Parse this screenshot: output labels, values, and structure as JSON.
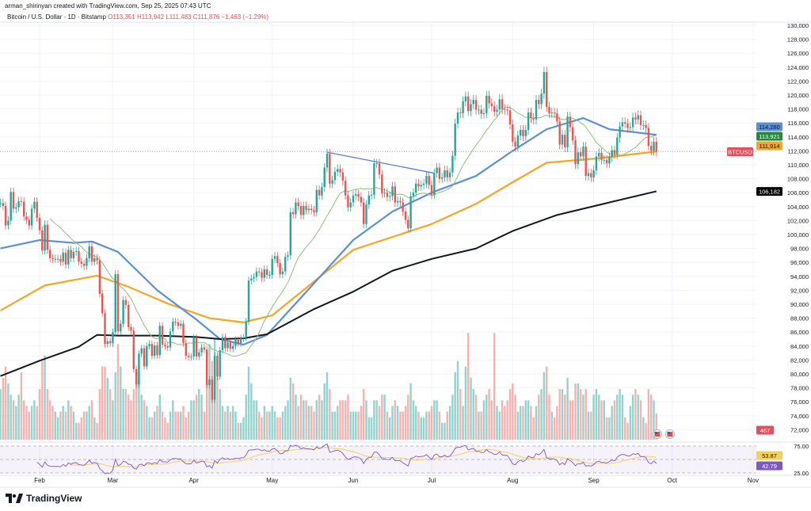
{
  "header": {
    "credit": "arman_shirinyan created with TradingView.com, Sep 25, 2025 07:43 UTC",
    "symbol": "Bitcoin / U.S. Dollar · 1D · Bitstamp",
    "open": "O113,351",
    "high": "H113,942",
    "low": "L111,483",
    "close": "C111,876",
    "change": "−1,463 (−1.29%)"
  },
  "logo": {
    "text": "TradingView"
  },
  "chart_data": {
    "type": "candlestick",
    "symbol": "BTCUSD",
    "interval": "1D",
    "ylim": [
      71000,
      131000
    ],
    "y_tick_labels": [
      "130,000",
      "128,000",
      "126,000",
      "124,000",
      "122,000",
      "120,000",
      "118,000",
      "116,000",
      "114,000",
      "112,000",
      "110,000",
      "108,000",
      "106,000",
      "104,000",
      "102,000",
      "100,000",
      "98,000",
      "96,000",
      "94,000",
      "92,000",
      "90,000",
      "88,000",
      "86,000",
      "84,000",
      "82,000",
      "80,000",
      "78,000",
      "76,000",
      "74,000",
      "72,000"
    ],
    "x_tick_labels": [
      {
        "label": "Feb",
        "date": "2025-02-01"
      },
      {
        "label": "Mar",
        "date": "2025-03-01"
      },
      {
        "label": "Apr",
        "date": "2025-04-01"
      },
      {
        "label": "May",
        "date": "2025-05-01"
      },
      {
        "label": "Jun",
        "date": "2025-06-01"
      },
      {
        "label": "Jul",
        "date": "2025-07-01"
      },
      {
        "label": "Aug",
        "date": "2025-08-01"
      },
      {
        "label": "Sep",
        "date": "2025-09-01"
      },
      {
        "label": "Oct",
        "date": "2025-10-01"
      },
      {
        "label": "Nov",
        "date": "2025-11-01"
      }
    ],
    "grid": true,
    "daily_close_thousands": [
      {
        "month": "2025-01",
        "from_day": 17,
        "close": [
          104.5,
          104.1,
          101.3,
          102.0,
          106.1,
          103.7,
          103.9,
          104.8,
          104.7,
          102.6,
          102.1,
          101.3,
          103.7,
          104.7,
          102.4
        ]
      },
      {
        "month": "2025-02",
        "from_day": 1,
        "close": [
          100.6,
          97.7,
          101.4,
          97.8,
          96.6,
          96.5,
          96.5,
          96.5,
          96.1,
          97.4,
          95.7,
          97.8,
          96.6,
          97.5,
          97.6,
          96.1,
          95.8,
          95.5,
          96.6,
          98.3,
          96.1,
          96.6,
          96.3,
          91.5,
          88.7,
          84.3,
          84.7,
          84.4
        ]
      },
      {
        "month": "2025-03",
        "from_day": 1,
        "close": [
          86.0,
          94.3,
          86.1,
          87.2,
          90.6,
          89.9,
          86.7,
          86.2,
          80.7,
          78.5,
          82.9,
          83.7,
          81.1,
          84.0,
          84.3,
          82.6,
          84.1,
          82.7,
          86.9,
          84.2,
          84.0,
          83.8,
          86.1,
          87.5,
          87.4,
          86.9,
          87.2,
          84.4,
          82.6,
          82.4,
          82.5
        ]
      },
      {
        "month": "2025-04",
        "from_day": 1,
        "close": [
          85.2,
          82.5,
          83.1,
          83.8,
          83.5,
          78.4,
          79.2,
          76.3,
          82.6,
          79.6,
          83.4,
          85.3,
          83.7,
          84.5,
          83.6,
          84.0,
          84.9,
          84.4,
          85.1,
          85.2,
          87.5,
          93.4,
          93.7,
          93.9,
          94.7,
          94.6,
          93.8,
          95.0,
          94.2,
          94.2
        ]
      },
      {
        "month": "2025-05",
        "from_day": 1,
        "close": [
          96.5,
          96.9,
          95.9,
          94.3,
          94.7,
          96.8,
          97.0,
          103.2,
          102.9,
          104.6,
          104.1,
          102.8,
          104.1,
          103.5,
          103.7,
          103.5,
          103.2,
          106.4,
          105.6,
          106.8,
          109.6,
          111.6,
          107.3,
          107.8,
          109.0,
          109.4,
          108.9,
          107.7,
          105.6,
          103.9,
          104.6
        ]
      },
      {
        "month": "2025-06",
        "from_day": 1,
        "close": [
          105.6,
          105.8,
          105.4,
          104.6,
          101.5,
          104.3,
          105.6,
          105.7,
          110.2,
          110.2,
          108.6,
          105.9,
          106.0,
          105.4,
          105.5,
          106.9,
          104.6,
          104.8,
          104.6,
          103.3,
          102.1,
          100.9,
          105.5,
          106.0,
          107.3,
          106.9,
          107.1,
          107.3,
          108.4,
          107.1
        ]
      },
      {
        "month": "2025-07",
        "from_day": 1,
        "close": [
          105.7,
          108.8,
          109.6,
          108.0,
          108.2,
          109.2,
          108.2,
          108.9,
          111.3,
          115.9,
          117.5,
          117.4,
          119.1,
          119.8,
          117.7,
          118.7,
          119.3,
          117.9,
          117.9,
          117.3,
          117.4,
          119.9,
          118.8,
          118.4,
          117.6,
          117.9,
          119.4,
          118.0,
          117.9,
          117.8,
          115.8
        ]
      },
      {
        "month": "2025-08",
        "from_day": 1,
        "close": [
          113.3,
          112.6,
          114.2,
          115.0,
          114.1,
          115.0,
          117.5,
          116.7,
          116.5,
          119.3,
          118.7,
          120.2,
          123.3,
          118.3,
          117.4,
          117.5,
          117.4,
          116.2,
          112.9,
          114.3,
          112.5,
          116.9,
          115.4,
          113.5,
          110.1,
          111.8,
          111.2,
          112.6,
          108.4,
          108.8,
          108.2
        ]
      },
      {
        "month": "2025-09",
        "from_day": 1,
        "close": [
          109.2,
          111.2,
          111.7,
          110.7,
          110.7,
          110.2,
          111.1,
          112.1,
          111.5,
          113.9,
          115.5,
          116.1,
          115.9,
          115.3,
          115.4,
          116.8,
          116.5,
          117.1,
          115.7,
          115.7,
          115.3,
          112.7,
          112.0,
          113.3,
          111.876
        ]
      }
    ],
    "daily_volume": [
      {
        "month": "2025-01",
        "from_day": 17,
        "values": [
          900,
          1100,
          1300,
          1000,
          800,
          700,
          600,
          800,
          1200,
          700,
          600,
          500,
          600,
          700,
          600
        ]
      },
      {
        "month": "2025-02",
        "from_day": 1,
        "values": [
          900,
          1400,
          1500,
          900,
          700,
          600,
          500,
          400,
          500,
          600,
          500,
          700,
          600,
          500,
          300,
          300,
          400,
          500,
          500,
          600,
          700,
          400,
          300,
          900,
          1300,
          1300,
          1100,
          900
        ]
      },
      {
        "month": "2025-03",
        "from_day": 1,
        "values": [
          700,
          1200,
          1700,
          1300,
          900,
          900,
          800,
          700,
          900,
          1200,
          1100,
          800,
          700,
          600,
          400,
          400,
          500,
          600,
          800,
          500,
          400,
          300,
          500,
          700,
          500,
          500,
          500,
          600,
          400,
          500,
          700
        ]
      },
      {
        "month": "2025-04",
        "from_day": 1,
        "values": [
          700,
          800,
          900,
          800,
          500,
          1000,
          1700,
          1400,
          1800,
          1100,
          900,
          600,
          500,
          600,
          500,
          600,
          500,
          300,
          300,
          400,
          800,
          1300,
          1000,
          700,
          700,
          500,
          400,
          600,
          500,
          500
        ]
      },
      {
        "month": "2025-05",
        "from_day": 1,
        "values": [
          600,
          500,
          400,
          400,
          500,
          600,
          700,
          1100,
          1000,
          800,
          600,
          800,
          700,
          700,
          600,
          600,
          500,
          700,
          800,
          700,
          1000,
          1200,
          900,
          500,
          500,
          600,
          700,
          700,
          700,
          800,
          500
        ]
      },
      {
        "month": "2025-06",
        "from_day": 1,
        "values": [
          500,
          500,
          500,
          600,
          900,
          700,
          400,
          400,
          700,
          700,
          600,
          800,
          800,
          500,
          400,
          600,
          700,
          600,
          500,
          500,
          600,
          800,
          1000,
          700,
          600,
          500,
          400,
          400,
          500,
          500
        ]
      },
      {
        "month": "2025-07",
        "from_day": 1,
        "values": [
          600,
          700,
          700,
          500,
          300,
          300,
          500,
          600,
          800,
          1200,
          1400,
          900,
          600,
          1300,
          1900,
          1100,
          900,
          800,
          500,
          500,
          700,
          800,
          900,
          700,
          1900,
          600,
          500,
          700,
          600,
          700,
          900
        ]
      },
      {
        "month": "2025-08",
        "from_day": 1,
        "values": [
          1000,
          800,
          500,
          600,
          600,
          700,
          700,
          600,
          400,
          600,
          800,
          900,
          1200,
          1300,
          800,
          500,
          400,
          600,
          900,
          900,
          800,
          1100,
          700,
          700,
          1000,
          1000,
          900,
          800,
          900,
          500,
          500
        ]
      },
      {
        "month": "2025-09",
        "from_day": 1,
        "values": [
          800,
          900,
          800,
          700,
          700,
          400,
          400,
          600,
          700,
          800,
          900,
          800,
          400,
          300,
          600,
          800,
          900,
          800,
          700,
          400,
          300,
          900,
          800,
          700,
          467
        ]
      }
    ],
    "moving_averages": [
      {
        "color": "#f5a623",
        "last": "111,914",
        "points": [
          [
            "2025-01-17",
            89.1
          ],
          [
            "2025-02-03",
            92.7
          ],
          [
            "2025-02-23",
            94.1
          ],
          [
            "2025-03-07",
            92.5
          ],
          [
            "2025-03-22",
            90.1
          ],
          [
            "2025-04-07",
            88.0
          ],
          [
            "2025-04-20",
            87.4
          ],
          [
            "2025-05-01",
            88.4
          ],
          [
            "2025-06-01",
            97.8
          ],
          [
            "2025-07-01",
            101.5
          ],
          [
            "2025-07-18",
            104.4
          ],
          [
            "2025-08-01",
            107.5
          ],
          [
            "2025-08-14",
            110.3
          ],
          [
            "2025-09-02",
            110.9
          ],
          [
            "2025-09-25",
            111.9
          ]
        ]
      },
      {
        "color": "#5b8fd6",
        "last": "114,280",
        "points": [
          [
            "2025-01-17",
            98.0
          ],
          [
            "2025-02-01",
            99.2
          ],
          [
            "2025-02-14",
            98.8
          ],
          [
            "2025-02-21",
            99.0
          ],
          [
            "2025-03-03",
            97.5
          ],
          [
            "2025-03-18",
            92.0
          ],
          [
            "2025-04-02",
            87.8
          ],
          [
            "2025-04-11",
            85.0
          ],
          [
            "2025-04-20",
            84.2
          ],
          [
            "2025-04-29",
            85.6
          ],
          [
            "2025-05-17",
            93.0
          ],
          [
            "2025-06-01",
            99.2
          ],
          [
            "2025-06-16",
            103.3
          ],
          [
            "2025-07-01",
            106.0
          ],
          [
            "2025-07-18",
            108.4
          ],
          [
            "2025-08-01",
            112.0
          ],
          [
            "2025-08-14",
            115.1
          ],
          [
            "2025-08-28",
            116.7
          ],
          [
            "2025-09-07",
            115.1
          ],
          [
            "2025-09-25",
            114.3
          ]
        ]
      },
      {
        "color": "#131722",
        "last": "106,182",
        "points": [
          [
            "2025-01-17",
            79.7
          ],
          [
            "2025-02-01",
            81.9
          ],
          [
            "2025-02-16",
            83.9
          ],
          [
            "2025-02-23",
            85.6
          ],
          [
            "2025-03-03",
            85.5
          ],
          [
            "2025-03-18",
            85.5
          ],
          [
            "2025-04-02",
            85.3
          ],
          [
            "2025-04-11",
            85.0
          ],
          [
            "2025-04-20",
            85.1
          ],
          [
            "2025-04-29",
            85.7
          ],
          [
            "2025-05-17",
            89.3
          ],
          [
            "2025-06-01",
            91.8
          ],
          [
            "2025-06-16",
            94.8
          ],
          [
            "2025-07-01",
            96.5
          ],
          [
            "2025-07-18",
            98.0
          ],
          [
            "2025-08-01",
            100.5
          ],
          [
            "2025-08-18",
            102.8
          ],
          [
            "2025-09-07",
            104.6
          ],
          [
            "2025-09-25",
            106.2
          ]
        ]
      }
    ],
    "sma20": {
      "color": "#8fbf7a",
      "last": "113,921",
      "label_color": "#1f8b3a"
    },
    "trendline": {
      "color": "#5b7fc4",
      "points": [
        [
          "2025-05-22",
          111.8
        ],
        [
          "2025-07-02",
          108.8
        ]
      ]
    },
    "last_price": {
      "value": 111876,
      "tag": "BTCUSD",
      "color": "#e0505e"
    },
    "volume_tag": "467",
    "colors": {
      "up": "#26a69a",
      "down": "#ef5350",
      "volume_up": "#80cbc4",
      "volume_down": "#f4a3a3",
      "rsi": "#7e57c2",
      "rsi_ma": "#f2d15c"
    },
    "rsi": {
      "upper": "75.00",
      "lower": "25.00",
      "ma_value": "53.87",
      "value": "42.79"
    },
    "event_icons": [
      "us-flag-icon",
      "us-flag-icon"
    ]
  }
}
